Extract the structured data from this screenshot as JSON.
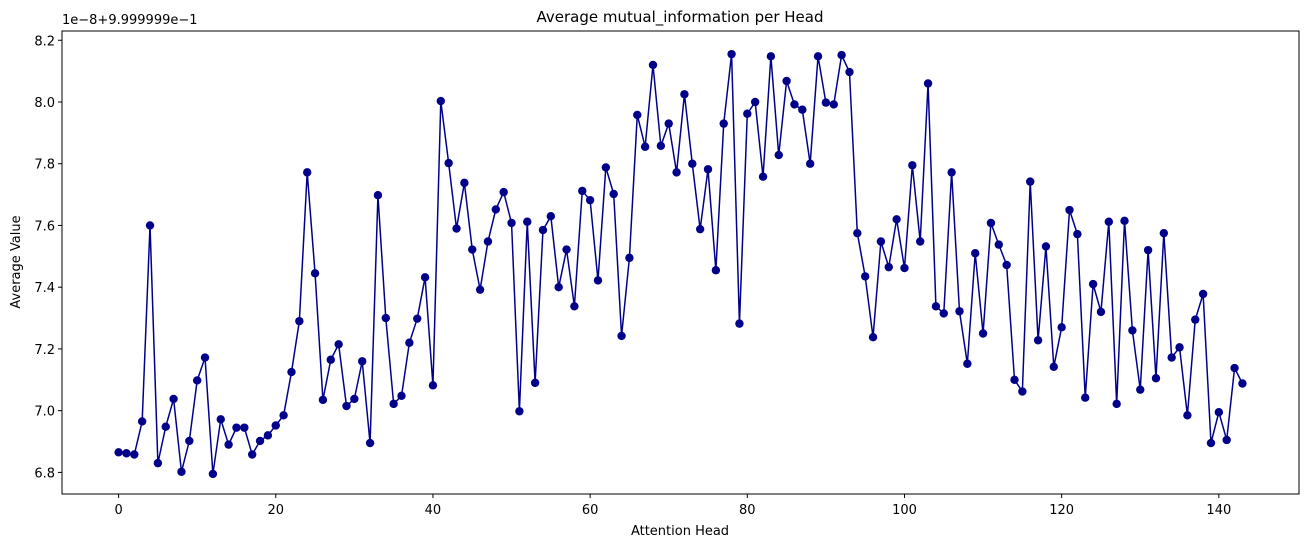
{
  "chart_data": {
    "type": "line",
    "title": "Average mutual_information per Head",
    "xlabel": "Attention Head",
    "ylabel": "Average Value",
    "y_offset_text": "1e−8+9.999999e−1",
    "xlim": [
      -7.2,
      150.2
    ],
    "ylim": [
      6.73,
      8.23
    ],
    "xticks": [
      0,
      20,
      40,
      60,
      80,
      100,
      120,
      140
    ],
    "xtick_labels": [
      "0",
      "20",
      "40",
      "60",
      "80",
      "100",
      "120",
      "140"
    ],
    "yticks": [
      6.8,
      7.0,
      7.2,
      7.4,
      7.6,
      7.8,
      8.0,
      8.2
    ],
    "ytick_labels": [
      "6.8",
      "7.0",
      "7.2",
      "7.4",
      "7.6",
      "7.8",
      "8.0",
      "8.2"
    ],
    "grid": false,
    "line_color": "#00008b",
    "marker": "circle",
    "series": [
      {
        "x": [
          0,
          1,
          2,
          3,
          4,
          5,
          6,
          7,
          8,
          9,
          10,
          11,
          12,
          13,
          14,
          15,
          16,
          17,
          18,
          19,
          20,
          21,
          22,
          23,
          24,
          25,
          26,
          27,
          28,
          29,
          30,
          31,
          32,
          33,
          34,
          35,
          36,
          37,
          38,
          39,
          40,
          41,
          42,
          43,
          44,
          45,
          46,
          47,
          48,
          49,
          50,
          51,
          52,
          53,
          54,
          55,
          56,
          57,
          58,
          59,
          60,
          61,
          62,
          63,
          64,
          65,
          66,
          67,
          68,
          69,
          70,
          71,
          72,
          73,
          74,
          75,
          76,
          77,
          78,
          79,
          80,
          81,
          82,
          83,
          84,
          85,
          86,
          87,
          88,
          89,
          90,
          91,
          92,
          93,
          94,
          95,
          96,
          97,
          98,
          99,
          100,
          101,
          102,
          103,
          104,
          105,
          106,
          107,
          108,
          109,
          110,
          111,
          112,
          113,
          114,
          115,
          116,
          117,
          118,
          119,
          120,
          121,
          122,
          123,
          124,
          125,
          126,
          127,
          128,
          129,
          130,
          131,
          132,
          133,
          134,
          135,
          136,
          137,
          138,
          139,
          140,
          141,
          142,
          143
        ],
        "values": [
          6.865,
          6.862,
          6.858,
          6.965,
          7.6,
          6.83,
          6.948,
          7.038,
          6.802,
          6.902,
          7.098,
          7.172,
          6.795,
          6.972,
          6.89,
          6.945,
          6.945,
          6.858,
          6.902,
          6.92,
          6.952,
          6.985,
          7.125,
          7.29,
          7.772,
          7.445,
          7.035,
          7.165,
          7.215,
          7.015,
          7.038,
          7.16,
          6.895,
          7.698,
          7.3,
          7.022,
          7.048,
          7.22,
          7.298,
          7.432,
          7.082,
          8.003,
          7.802,
          7.59,
          7.738,
          7.522,
          7.392,
          7.548,
          7.652,
          7.708,
          7.608,
          6.998,
          7.612,
          7.09,
          7.585,
          7.63,
          7.4,
          7.522,
          7.338,
          7.712,
          7.682,
          7.422,
          7.788,
          7.702,
          7.242,
          7.495,
          7.958,
          7.855,
          8.12,
          7.858,
          7.93,
          7.772,
          8.025,
          7.8,
          7.588,
          7.782,
          7.455,
          7.93,
          8.155,
          7.282,
          7.962,
          8.0,
          7.758,
          8.148,
          7.828,
          8.068,
          7.992,
          7.975,
          7.8,
          8.148,
          7.998,
          7.992,
          8.152,
          8.097,
          7.575,
          7.435,
          7.238,
          7.548,
          7.465,
          7.62,
          7.462,
          7.795,
          7.548,
          8.06,
          7.338,
          7.315,
          7.772,
          7.322,
          7.152,
          7.51,
          7.25,
          7.608,
          7.538,
          7.472,
          7.1,
          7.062,
          7.742,
          7.228,
          7.532,
          7.142,
          7.27,
          7.65,
          7.572,
          7.042,
          7.41,
          7.32,
          7.612,
          7.022,
          7.615,
          7.26,
          7.068,
          7.52,
          7.105,
          7.575,
          7.172,
          7.205,
          6.985,
          7.295,
          7.378,
          6.895,
          6.995,
          6.905,
          7.138,
          7.088
        ]
      }
    ]
  }
}
